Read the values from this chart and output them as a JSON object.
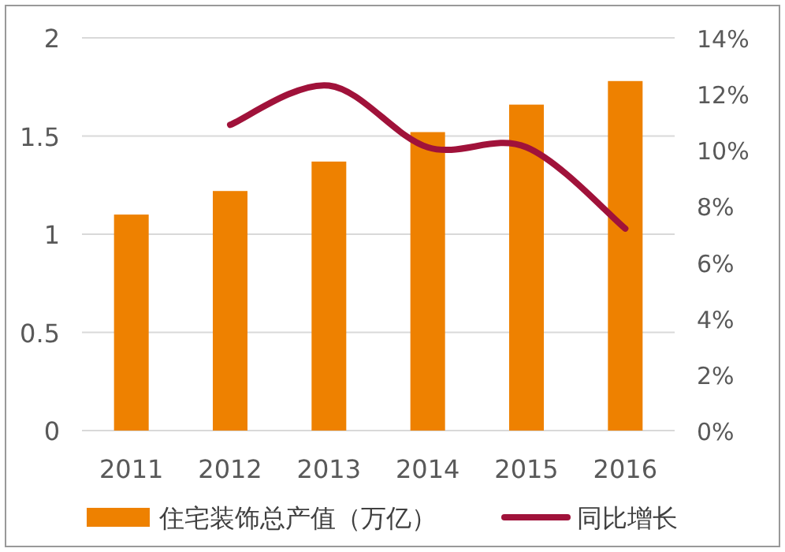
{
  "chart_data": {
    "type": "bar",
    "categories": [
      "2011",
      "2012",
      "2013",
      "2014",
      "2015",
      "2016"
    ],
    "series": [
      {
        "name": "住宅装饰总产值（万亿）",
        "color": "#ee8100",
        "values": [
          1.1,
          1.22,
          1.37,
          1.52,
          1.66,
          1.78
        ]
      },
      {
        "name": "同比增长",
        "type": "line",
        "axis": "y2",
        "color": "#a0123a",
        "values": [
          null,
          10.9,
          12.3,
          10.1,
          10.1,
          7.2
        ]
      }
    ],
    "ylim": [
      0,
      2
    ],
    "yticks": [
      0,
      0.5,
      1,
      1.5,
      2
    ],
    "y2lim": [
      0,
      14
    ],
    "y2ticks": [
      {
        "value": 0,
        "label": "0%"
      },
      {
        "value": 2,
        "label": "2%"
      },
      {
        "value": 4,
        "label": "4%"
      },
      {
        "value": 6,
        "label": "6%"
      },
      {
        "value": 8,
        "label": "8%"
      },
      {
        "value": 10,
        "label": "10%"
      },
      {
        "value": 12,
        "label": "12%"
      },
      {
        "value": 14,
        "label": "14%"
      }
    ],
    "grid": "y",
    "legend": "bottom",
    "marker": "none",
    "line_style": "solid"
  }
}
